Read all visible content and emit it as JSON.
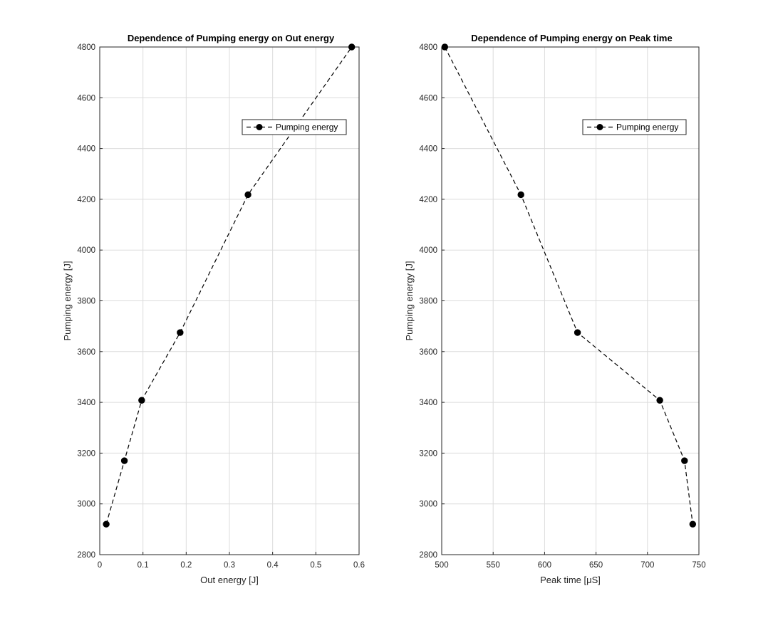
{
  "chart_data": [
    {
      "type": "line",
      "title": "Dependence of Pumping energy on Out energy",
      "xlabel": "Out energy [J]",
      "ylabel": "Pumping energy [J]",
      "xlim": [
        0,
        0.6
      ],
      "ylim": [
        2800,
        4800
      ],
      "xticks": [
        0,
        0.1,
        0.2,
        0.3,
        0.4,
        0.5,
        0.6
      ],
      "xtick_labels": [
        "0",
        "0.1",
        "0.2",
        "0.3",
        "0.4",
        "0.5",
        "0.6"
      ],
      "yticks": [
        2800,
        3000,
        3200,
        3400,
        3600,
        3800,
        4000,
        4200,
        4400,
        4600,
        4800
      ],
      "ytick_labels": [
        "2800",
        "3000",
        "3200",
        "3400",
        "3600",
        "3800",
        "4000",
        "4200",
        "4400",
        "4600",
        "4800"
      ],
      "grid": true,
      "legend_position": "top-right",
      "series": [
        {
          "name": "Pumping energy",
          "color": "#000000",
          "line_style": "dashed",
          "marker": "circle",
          "x": [
            0.015,
            0.057,
            0.097,
            0.186,
            0.343,
            0.583
          ],
          "y": [
            2920,
            3170,
            3408,
            3675,
            4218,
            4800
          ]
        }
      ]
    },
    {
      "type": "line",
      "title": "Dependence of Pumping energy on Peak time",
      "xlabel": "Peak time [μS]",
      "ylabel": "Pumping energy [J]",
      "xlim": [
        500,
        750
      ],
      "ylim": [
        2800,
        4800
      ],
      "xticks": [
        500,
        550,
        600,
        650,
        700,
        750
      ],
      "xtick_labels": [
        "500",
        "550",
        "600",
        "650",
        "700",
        "750"
      ],
      "yticks": [
        2800,
        3000,
        3200,
        3400,
        3600,
        3800,
        4000,
        4200,
        4400,
        4600,
        4800
      ],
      "ytick_labels": [
        "2800",
        "3000",
        "3200",
        "3400",
        "3600",
        "3800",
        "4000",
        "4200",
        "4400",
        "4600",
        "4800"
      ],
      "grid": true,
      "legend_position": "top-right",
      "series": [
        {
          "name": "Pumping energy",
          "color": "#000000",
          "line_style": "dashed",
          "marker": "circle",
          "x": [
            503,
            577,
            632,
            712,
            736,
            744
          ],
          "y": [
            4800,
            4218,
            3675,
            3408,
            3170,
            2920
          ]
        }
      ]
    }
  ]
}
